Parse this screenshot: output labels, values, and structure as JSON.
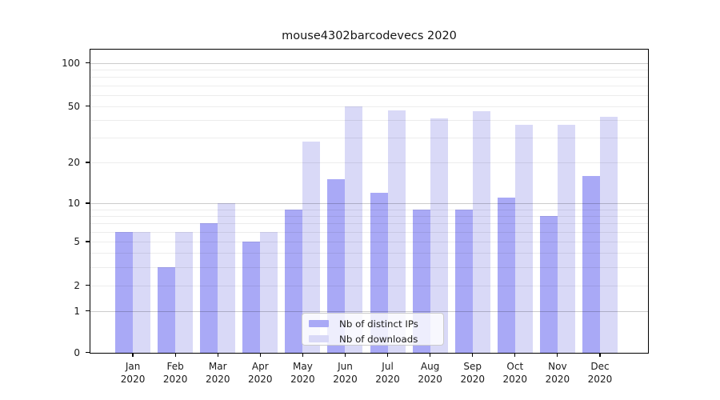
{
  "title": "mouse4302barcodevecs 2020",
  "legend": {
    "items": [
      {
        "label": "Nb of distinct IPs",
        "color": "#a9a9f6"
      },
      {
        "label": "Nb of downloads",
        "color": "#d9d9f7"
      }
    ]
  },
  "axes": {
    "y_tick_labels": [
      "100",
      "50",
      "20",
      "10",
      "5",
      "2",
      "1",
      "0"
    ],
    "x_tick_year": "2020"
  },
  "chart_data": {
    "type": "bar",
    "title": "mouse4302barcodevecs 2020",
    "categories": [
      "Jan",
      "Feb",
      "Mar",
      "Apr",
      "May",
      "Jun",
      "Jul",
      "Aug",
      "Sep",
      "Oct",
      "Nov",
      "Dec"
    ],
    "year": "2020",
    "series": [
      {
        "name": "Nb of distinct IPs",
        "color": "#a9a9f6",
        "values": [
          6,
          3,
          7,
          5,
          9,
          15,
          12,
          9,
          9,
          11,
          8,
          16
        ]
      },
      {
        "name": "Nb of downloads",
        "color": "#d9d9f7",
        "values": [
          6,
          6,
          10,
          6,
          28,
          50,
          47,
          41,
          46,
          37,
          37,
          42
        ]
      }
    ],
    "xlabel": "",
    "ylabel": "",
    "yscale": "log1p",
    "ylim": [
      0,
      124
    ],
    "yticks": [
      0,
      1,
      2,
      5,
      10,
      20,
      50,
      100
    ],
    "grid_values": [
      1,
      2,
      3,
      4,
      5,
      6,
      7,
      8,
      9,
      10,
      20,
      30,
      40,
      50,
      60,
      70,
      80,
      90,
      100
    ],
    "major_grid_values": [
      1,
      10,
      100
    ],
    "grid": "horizontal, drawn over bars",
    "legend_position": "lower center"
  }
}
